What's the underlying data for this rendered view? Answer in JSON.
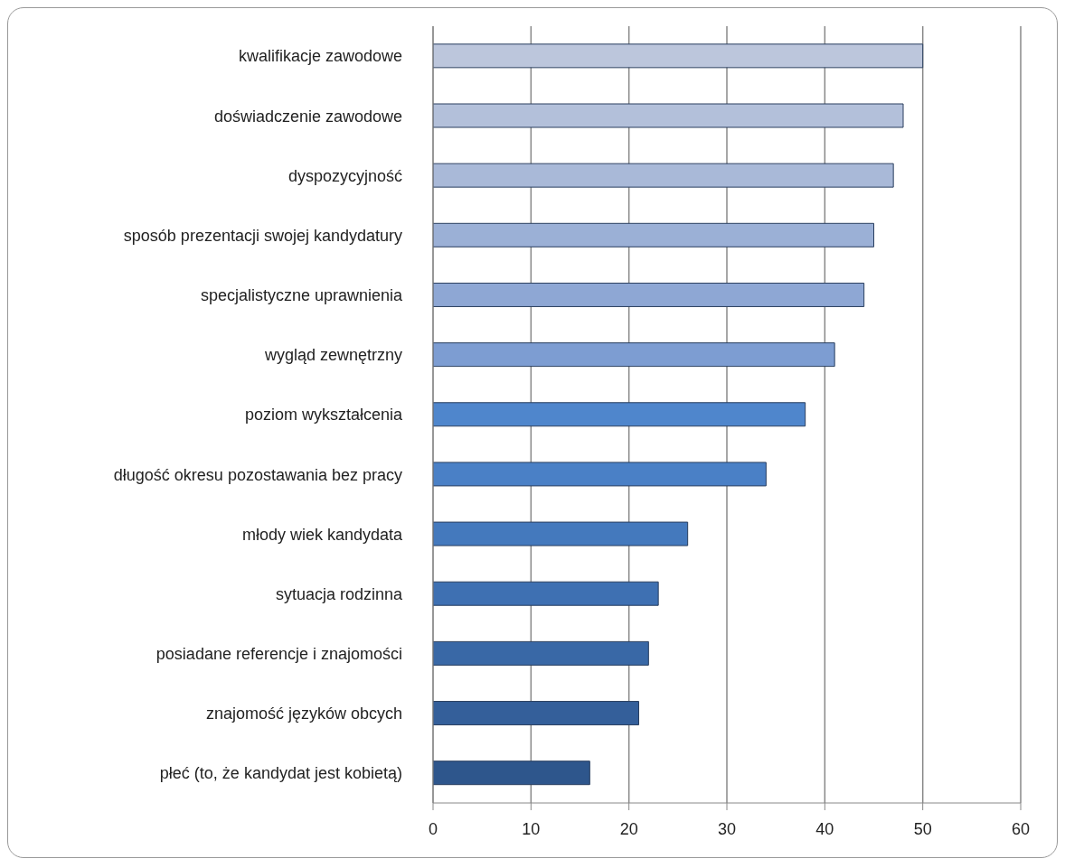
{
  "chart_data": {
    "type": "bar",
    "orientation": "horizontal",
    "categories": [
      "kwalifikacje zawodowe",
      "doświadczenie zawodowe",
      "dyspozycyjność",
      "sposób prezentacji swojej kandydatury",
      "specjalistyczne uprawnienia",
      "wygląd zewnętrzny",
      "poziom wykształcenia",
      "długość okresu pozostawania bez pracy",
      "młody wiek kandydata",
      "sytuacja rodzinna",
      "posiadane referencje i znajomości",
      "znajomość języków obcych",
      "płeć (to, że kandydat jest kobietą)"
    ],
    "values": [
      50,
      48,
      47,
      45,
      44,
      41,
      38,
      34,
      26,
      23,
      22,
      21,
      16
    ],
    "colors": [
      "#bcc6dc",
      "#b3c0da",
      "#a9b9d8",
      "#9bb0d6",
      "#8ea7d4",
      "#7d9dd2",
      "#4f86cc",
      "#4a80c6",
      "#4479bd",
      "#3e70b2",
      "#3968a6",
      "#345f9a",
      "#2e568c"
    ],
    "xlim": [
      0,
      60
    ],
    "xticks": [
      0,
      10,
      20,
      30,
      40,
      50,
      60
    ],
    "grid": "x",
    "legend": false
  }
}
